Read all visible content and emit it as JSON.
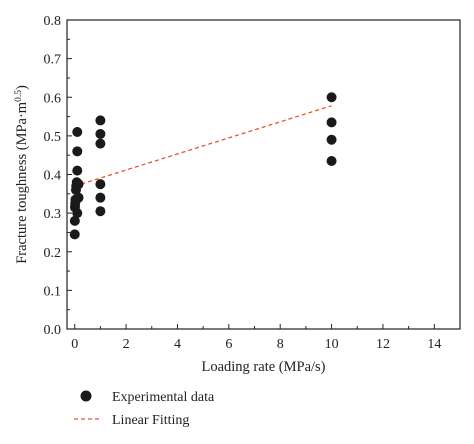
{
  "chart_data": {
    "type": "scatter",
    "xlabel": "Loading rate (MPa/s)",
    "ylabel_main": "Fracture toughness (MPa·m",
    "ylabel_sup": "0.5",
    "ylabel_close": ")",
    "xlim": [
      -0.3,
      15
    ],
    "ylim": [
      0,
      0.8
    ],
    "x_ticks": [
      0,
      2,
      4,
      6,
      8,
      10,
      12,
      14
    ],
    "x_tick_labels": [
      "0",
      "2",
      "4",
      "6",
      "8",
      "10",
      "12",
      "14"
    ],
    "y_ticks": [
      0.0,
      0.1,
      0.2,
      0.3,
      0.4,
      0.5,
      0.6,
      0.7,
      0.8
    ],
    "y_tick_labels": [
      "0.0",
      "0.1",
      "0.2",
      "0.3",
      "0.4",
      "0.5",
      "0.6",
      "0.7",
      "0.8"
    ],
    "grid": false,
    "legend_position": "bottom-left, below plot",
    "series": [
      {
        "name": "Experimental data",
        "kind": "scatter",
        "color": "#1a1a1a",
        "x": [
          0.001,
          0.005,
          0.01,
          0.02,
          0.03,
          0.05,
          0.06,
          0.08,
          0.1,
          0.1,
          0.1,
          0.1,
          0.15,
          0.15,
          1,
          1,
          1,
          1,
          1,
          1,
          10,
          10,
          10,
          10
        ],
        "y": [
          0.245,
          0.28,
          0.315,
          0.325,
          0.335,
          0.36,
          0.37,
          0.38,
          0.51,
          0.46,
          0.41,
          0.3,
          0.34,
          0.375,
          0.54,
          0.505,
          0.48,
          0.375,
          0.34,
          0.305,
          0.6,
          0.535,
          0.49,
          0.435
        ]
      },
      {
        "name": "Linear Fitting",
        "kind": "line",
        "color": "#e4572e",
        "dash": true,
        "x": [
          0,
          10
        ],
        "y": [
          0.37,
          0.578
        ]
      }
    ]
  }
}
